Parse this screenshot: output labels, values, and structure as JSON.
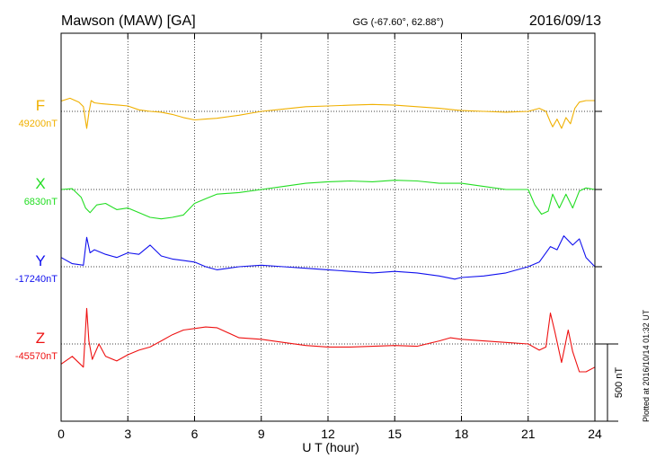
{
  "header": {
    "station": "Mawson (MAW)  [GA]",
    "coords": "GG (-67.60°,  62.88°)",
    "date": "2016/09/13"
  },
  "footnote": "Plotted at 2016/10/14 01:32 UT",
  "scale_bar_label": "500 nT",
  "chart_data": {
    "type": "line",
    "xlabel": "U T (hour)",
    "xlim": [
      0,
      24
    ],
    "xticks": [
      0,
      3,
      6,
      9,
      12,
      15,
      18,
      21,
      24
    ],
    "tick_labels": [
      "0",
      "3",
      "6",
      "9",
      "12",
      "15",
      "18",
      "21",
      "24"
    ],
    "grid": true,
    "scale_nT": 500,
    "series": [
      {
        "name": "F",
        "baseline_label": "49200nT",
        "baseline_nT": 49200,
        "color": "#f0b000",
        "x": [
          0,
          0.4,
          0.8,
          1.0,
          1.15,
          1.25,
          1.35,
          1.5,
          1.8,
          2.2,
          2.6,
          3.0,
          3.5,
          4.0,
          4.5,
          5.0,
          5.5,
          6.0,
          6.5,
          7.0,
          8.0,
          9.0,
          10.0,
          11.0,
          12.0,
          13.0,
          14.0,
          15.0,
          16.0,
          17.0,
          18.0,
          19.0,
          20.0,
          21.0,
          21.5,
          21.8,
          22.0,
          22.1,
          22.3,
          22.5,
          22.7,
          22.9,
          23.1,
          23.3,
          23.6,
          24.0
        ],
        "y": [
          67,
          85,
          60,
          30,
          -110,
          -10,
          70,
          55,
          50,
          45,
          40,
          35,
          10,
          0,
          -5,
          -20,
          -40,
          -55,
          -50,
          -45,
          -25,
          0,
          15,
          30,
          35,
          40,
          45,
          40,
          30,
          20,
          5,
          0,
          -5,
          0,
          20,
          0,
          -70,
          -100,
          -50,
          -110,
          -40,
          -80,
          20,
          60,
          70,
          70
        ]
      },
      {
        "name": "X",
        "baseline_label": "6830nT",
        "baseline_nT": 6830,
        "color": "#22dd22",
        "x": [
          0,
          0.5,
          0.9,
          1.1,
          1.3,
          1.6,
          2.0,
          2.5,
          3.0,
          3.5,
          4.0,
          4.5,
          5.0,
          5.5,
          6.0,
          6.5,
          7.0,
          8.0,
          9.0,
          10.0,
          11.0,
          12.0,
          13.0,
          14.0,
          15.0,
          16.0,
          17.0,
          18.0,
          19.0,
          20.0,
          21.0,
          21.3,
          21.6,
          21.9,
          22.1,
          22.4,
          22.7,
          23.0,
          23.3,
          23.6,
          24.0
        ],
        "y": [
          0,
          5,
          -50,
          -120,
          -150,
          -100,
          -90,
          -130,
          -120,
          -150,
          -180,
          -190,
          -180,
          -165,
          -90,
          -60,
          -30,
          -20,
          0,
          20,
          40,
          50,
          55,
          50,
          60,
          55,
          40,
          40,
          20,
          0,
          0,
          -100,
          -160,
          -140,
          -30,
          -120,
          -30,
          -120,
          -10,
          10,
          0
        ]
      },
      {
        "name": "Y",
        "baseline_label": "-17240nT",
        "baseline_nT": -17240,
        "color": "#1010ee",
        "x": [
          0,
          0.5,
          1.0,
          1.15,
          1.3,
          1.5,
          2.0,
          2.5,
          3.0,
          3.5,
          4.0,
          4.5,
          5.0,
          5.5,
          6.0,
          6.5,
          7.0,
          8.0,
          9.0,
          10.0,
          11.0,
          12.0,
          13.0,
          14.0,
          15.0,
          16.0,
          17.0,
          17.7,
          18.0,
          19.0,
          20.0,
          21.0,
          21.5,
          22.0,
          22.3,
          22.6,
          23.0,
          23.3,
          23.6,
          24.0
        ],
        "y": [
          60,
          20,
          10,
          190,
          90,
          110,
          80,
          60,
          90,
          80,
          140,
          70,
          50,
          40,
          30,
          0,
          -20,
          0,
          10,
          0,
          -10,
          -20,
          -30,
          -40,
          -30,
          -40,
          -60,
          -80,
          -70,
          -60,
          -40,
          0,
          30,
          130,
          110,
          200,
          140,
          180,
          60,
          0
        ]
      },
      {
        "name": "Z",
        "baseline_label": "-45570nT",
        "baseline_nT": -45570,
        "color": "#ee1111",
        "x": [
          0,
          0.5,
          1.0,
          1.15,
          1.25,
          1.4,
          1.7,
          2.0,
          2.5,
          3.0,
          3.5,
          4.0,
          4.5,
          5.0,
          5.5,
          6.0,
          6.5,
          7.0,
          8.0,
          9.0,
          10.0,
          11.0,
          12.0,
          13.0,
          14.0,
          15.0,
          16.0,
          17.0,
          17.5,
          18.0,
          19.0,
          20.0,
          21.0,
          21.5,
          21.8,
          22.0,
          22.2,
          22.5,
          22.8,
          23.0,
          23.3,
          23.6,
          24.0
        ],
        "y": [
          -130,
          -80,
          -150,
          230,
          20,
          -100,
          0,
          -80,
          -110,
          -70,
          -40,
          -20,
          20,
          60,
          90,
          100,
          110,
          105,
          40,
          30,
          10,
          -10,
          -20,
          -20,
          -15,
          -10,
          -15,
          20,
          40,
          30,
          20,
          10,
          0,
          -40,
          -20,
          200,
          80,
          -120,
          90,
          -50,
          -180,
          -180,
          -150
        ]
      }
    ]
  }
}
